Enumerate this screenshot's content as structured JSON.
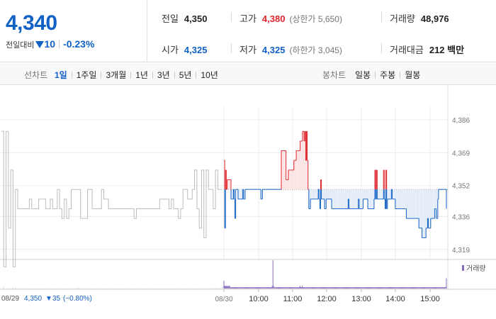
{
  "quote": {
    "price": "4,340",
    "change_label": "전일대비",
    "change_amount": "10",
    "change_percent": "-0.23%"
  },
  "stats": {
    "prev_close": {
      "label": "전일",
      "value": "4,350"
    },
    "high": {
      "label": "고가",
      "value": "4,380",
      "sub": "(상한가 5,650)"
    },
    "volume": {
      "label": "거래량",
      "value": "48,976"
    },
    "open": {
      "label": "시가",
      "value": "4,325"
    },
    "low": {
      "label": "저가",
      "value": "4,325",
      "sub": "(하한가 3,045)"
    },
    "amount": {
      "label": "거래대금",
      "value": "212 백만"
    }
  },
  "toolbar": {
    "line_label": "선차트",
    "line_tabs": [
      "1일",
      "1주일",
      "3개월",
      "1년",
      "3년",
      "5년",
      "10년"
    ],
    "active_line_tab": 0,
    "candle_label": "봉차트",
    "candle_tabs": [
      "일봉",
      "주봉",
      "월봉"
    ]
  },
  "colors": {
    "up": "#e0252c",
    "down": "#1261c4",
    "prev_day": "#bdbdbd",
    "accent": "#1261c4"
  },
  "footer": {
    "prev_date": "08/29",
    "prev_close": "4,350",
    "prev_change": "35",
    "prev_change_pct": "(−0.80%)"
  },
  "chart_data": {
    "type": "line",
    "title": "",
    "baseline": 4350,
    "ylim": [
      4316,
      4390
    ],
    "y_ticks": [
      4386,
      4369,
      4352,
      4336,
      4319
    ],
    "y_tick_labels": [
      "4,386",
      "4,369",
      "4,352",
      "4,336",
      "4,319"
    ],
    "x_tick_labels": [
      "08/30",
      "10:00",
      "11:00",
      "12:00",
      "13:00",
      "14:00",
      "15:00"
    ],
    "volume_legend": "거래량",
    "prev_day_series": {
      "name": "08/29",
      "values": [
        4380,
        4310,
        4380,
        4330,
        4360,
        4310,
        4350,
        4340,
        4340,
        4340,
        4340,
        4340,
        4345,
        4340,
        4340,
        4340,
        4345,
        4345,
        4345,
        4340,
        4340,
        4345,
        4340,
        4340,
        4350,
        4340,
        4335,
        4345,
        4335,
        4340,
        4350,
        4350,
        4350,
        4350,
        4335,
        4335,
        4335,
        4350,
        4350,
        4340,
        4340,
        4340,
        4340,
        4350,
        4345,
        4345,
        4340,
        4340,
        4340,
        4340,
        4340,
        4340,
        4340,
        4340,
        4340,
        4340,
        4340,
        4335,
        4340,
        4340,
        4340,
        4340,
        4340,
        4340,
        4340,
        4340,
        4340,
        4340,
        4345,
        4345,
        4345,
        4345,
        4340,
        4345,
        4340,
        4340,
        4335,
        4340,
        4350,
        4350,
        4345,
        4345,
        4350,
        4360,
        4340,
        4330,
        4360,
        4325,
        4360,
        4350,
        4350,
        4340,
        4360,
        4350,
        4350,
        4350
      ]
    },
    "today_series": {
      "name": "08/30",
      "values": [
        4365,
        4330,
        4360,
        4350,
        4355,
        4355,
        4355,
        4355,
        4355,
        4345,
        4345,
        4345,
        4350,
        4345,
        4335,
        4350,
        4350,
        4350,
        4345,
        4345,
        4345,
        4345,
        4345,
        4345,
        4350,
        4345,
        4345,
        4350,
        4350,
        4350,
        4350,
        4350,
        4350,
        4350,
        4350,
        4350,
        4350,
        4350,
        4350,
        4350,
        4350,
        4350,
        4350,
        4350,
        4350,
        4350,
        4350,
        4345,
        4345,
        4350,
        4350,
        4350,
        4350,
        4350,
        4350,
        4350,
        4350,
        4350,
        4350,
        4350,
        4350,
        4350,
        4350,
        4350,
        4350,
        4350,
        4350,
        4350,
        4350,
        4350,
        4350,
        4350,
        4350,
        4370,
        4370,
        4370,
        4370,
        4370,
        4370,
        4355,
        4355,
        4355,
        4360,
        4360,
        4360,
        4360,
        4360,
        4360,
        4360,
        4365,
        4365,
        4365,
        4370,
        4370,
        4370,
        4370,
        4370,
        4375,
        4375,
        4375,
        4380,
        4380,
        4375,
        4380,
        4365,
        4380,
        4365,
        4350,
        4340,
        4340,
        4345,
        4345,
        4345,
        4345,
        4345,
        4345,
        4345,
        4345,
        4345,
        4345,
        4350,
        4345,
        4340,
        4355,
        4345,
        4345,
        4345,
        4345,
        4340,
        4340,
        4345,
        4345,
        4345,
        4345,
        4345,
        4345,
        4345,
        4340,
        4340,
        4340,
        4340,
        4340,
        4340,
        4340,
        4340,
        4340,
        4340,
        4340,
        4340,
        4340,
        4340,
        4340,
        4340,
        4340,
        4340,
        4340,
        4340,
        4340,
        4345,
        4340,
        4340,
        4340,
        4340,
        4340,
        4340,
        4340,
        4340,
        4340,
        4340,
        4340,
        4340,
        4345,
        4340,
        4340,
        4340,
        4340,
        4340,
        4345,
        4345,
        4345,
        4345,
        4345,
        4345,
        4340,
        4340,
        4340,
        4340,
        4340,
        4340,
        4340,
        4340,
        4345,
        4360,
        4345,
        4360,
        4345,
        4345,
        4345,
        4345,
        4345,
        4345,
        4345,
        4345,
        4360,
        4345,
        4340,
        4360,
        4340,
        4345,
        4345,
        4345,
        4345,
        4345,
        4350,
        4345,
        4345,
        4345,
        4345,
        4340,
        4340,
        4340,
        4340,
        4340,
        4340,
        4340,
        4340,
        4340,
        4340,
        4340,
        4340,
        4340,
        4340,
        4335,
        4335,
        4335,
        4335,
        4335,
        4335,
        4335,
        4335,
        4335,
        4335,
        4335,
        4335,
        4335,
        4335,
        4335,
        4335,
        4330,
        4330,
        4330,
        4330,
        4325,
        4325,
        4325,
        4325,
        4325,
        4330,
        4330,
        4335,
        4330,
        4330,
        4330,
        4335,
        4335,
        4335,
        4335,
        4335,
        4340,
        4340,
        4335,
        4335,
        4345,
        4350,
        4350,
        4350,
        4350,
        4350,
        4350,
        4350,
        4350,
        4350,
        4350,
        4340
      ]
    },
    "prev_volume": [
      1,
      5,
      1,
      1,
      1,
      3,
      4,
      1,
      1,
      1,
      1,
      2,
      1,
      1,
      1,
      1,
      1,
      1,
      1,
      2,
      2,
      1,
      1,
      1,
      1,
      1,
      1,
      1,
      1,
      1,
      1,
      1,
      2,
      4,
      1,
      2,
      1,
      1,
      1,
      1,
      1,
      1,
      1,
      1,
      1,
      1,
      1,
      1,
      1,
      1,
      1,
      1,
      1,
      1,
      1,
      1,
      1,
      1,
      1,
      1,
      1,
      1,
      1,
      1,
      1,
      1,
      1,
      1,
      1,
      1,
      1,
      1,
      1,
      1,
      1,
      1,
      1,
      1,
      1,
      1,
      1,
      1,
      1,
      1,
      1,
      1,
      1,
      1,
      1,
      2,
      2,
      2,
      4,
      2,
      2,
      8
    ],
    "today_volume": [
      30,
      10,
      10,
      10,
      10,
      10,
      10,
      10,
      10,
      5,
      5,
      5,
      5,
      5,
      5,
      5,
      5,
      5,
      5,
      5,
      5,
      5,
      5,
      5,
      5,
      5,
      5,
      5,
      5,
      5,
      5,
      5,
      5,
      5,
      5,
      5,
      5,
      5,
      5,
      5,
      5,
      5,
      5,
      5,
      5,
      5,
      5,
      5,
      5,
      5,
      5,
      5,
      5,
      5,
      5,
      5,
      5,
      5,
      5,
      5,
      5,
      5,
      5,
      5,
      5,
      5,
      10,
      110,
      10,
      5,
      5,
      5,
      5,
      5,
      5,
      5,
      5,
      5,
      5,
      5,
      5,
      5,
      5,
      5,
      5,
      5,
      5,
      5,
      5,
      5,
      5,
      5,
      5,
      5,
      5,
      5,
      5,
      5,
      5,
      5,
      5,
      5,
      5,
      5,
      10,
      5,
      5,
      10,
      5,
      5,
      5,
      5,
      5,
      5,
      5,
      5,
      5,
      5,
      5,
      5,
      5,
      5,
      5,
      5,
      5,
      5,
      5,
      5,
      5,
      5,
      5,
      5,
      5,
      5,
      5,
      5,
      5,
      5,
      5,
      5,
      5,
      5,
      5,
      5,
      5,
      5,
      5,
      5,
      5,
      5,
      5,
      5,
      5,
      5,
      5,
      5,
      5,
      5,
      5,
      5,
      5,
      5,
      5,
      5,
      5,
      5,
      5,
      5,
      5,
      5,
      5,
      5,
      5,
      5,
      5,
      5,
      5,
      5,
      5,
      5,
      5,
      5,
      5,
      5,
      5,
      5,
      5,
      5,
      5,
      5,
      5,
      5,
      5,
      5,
      5,
      5,
      5,
      5,
      5,
      5,
      5,
      5,
      5,
      5,
      5,
      5,
      5,
      5,
      5,
      5,
      5,
      5,
      5,
      5,
      5,
      5,
      5,
      5,
      5,
      5,
      5,
      5,
      5,
      5,
      5,
      5,
      5,
      5,
      5,
      5,
      5,
      5,
      5,
      5,
      5,
      5,
      5,
      5,
      5,
      5,
      5,
      5,
      5,
      5,
      5,
      5,
      5,
      5,
      5,
      5,
      5,
      5,
      5,
      5,
      5,
      5,
      5,
      5,
      5,
      5,
      5,
      5,
      5,
      5,
      5,
      5,
      5,
      5,
      5,
      5,
      5,
      5,
      5,
      5,
      5,
      5,
      5,
      5,
      5,
      5,
      5,
      5,
      5,
      5,
      5,
      5,
      5,
      5,
      5,
      5,
      5,
      5,
      5,
      5,
      5,
      5,
      5,
      5,
      5,
      5,
      5,
      5,
      5,
      5,
      40
    ]
  }
}
